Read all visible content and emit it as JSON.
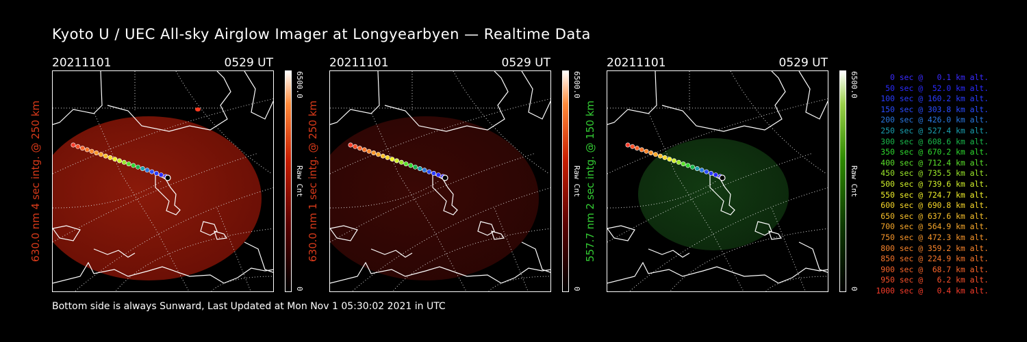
{
  "page_title": "Kyoto U / UEC All-sky Airglow Imager at Longyearbyen — Realtime Data",
  "panels": [
    {
      "date": "20211101",
      "time": "0529 UT",
      "label": "630.0 nm 4 sec intg. @ 250 km",
      "label_color": "#d93a1a",
      "colorbar_max": "6500.0",
      "colorbar_unit": "Raw Cnt",
      "colorbar_min": "0",
      "theme": "red-bright"
    },
    {
      "date": "20211101",
      "time": "0529 UT",
      "label": "630.0 nm 1 sec intg. @ 250 km",
      "label_color": "#d93a1a",
      "colorbar_max": "6500.0",
      "colorbar_unit": "Raw Cnt",
      "colorbar_min": "0",
      "theme": "red-dark"
    },
    {
      "date": "20211101",
      "time": "0529 UT",
      "label": "557.7 nm 2 sec intg. @ 150 km",
      "label_color": "#33cc33",
      "colorbar_max": "6500.0",
      "colorbar_unit": "Raw Cnt",
      "colorbar_min": "0",
      "theme": "green"
    }
  ],
  "legend": [
    {
      "text": "   0 sec @   0.1 km alt.",
      "color": "#3a2aff"
    },
    {
      "text": "  50 sec @  52.0 km alt.",
      "color": "#2a2aff"
    },
    {
      "text": " 100 sec @ 160.2 km alt.",
      "color": "#2a3cff"
    },
    {
      "text": " 150 sec @ 303.8 km alt.",
      "color": "#2a4cff"
    },
    {
      "text": " 200 sec @ 426.0 km alt.",
      "color": "#2a78e0"
    },
    {
      "text": " 250 sec @ 527.4 km alt.",
      "color": "#1aa0b0"
    },
    {
      "text": " 300 sec @ 608.6 km alt.",
      "color": "#1ab84a"
    },
    {
      "text": " 350 sec @ 670.2 km alt.",
      "color": "#2ed82e"
    },
    {
      "text": " 400 sec @ 712.4 km alt.",
      "color": "#5ae02a"
    },
    {
      "text": " 450 sec @ 735.5 km alt.",
      "color": "#9ae82a"
    },
    {
      "text": " 500 sec @ 739.6 km alt.",
      "color": "#d0f02a"
    },
    {
      "text": " 550 sec @ 724.7 km alt.",
      "color": "#f0f02a"
    },
    {
      "text": " 600 sec @ 690.8 km alt.",
      "color": "#f8d82a"
    },
    {
      "text": " 650 sec @ 637.6 km alt.",
      "color": "#f8c02a"
    },
    {
      "text": " 700 sec @ 564.9 km alt.",
      "color": "#f8a82a"
    },
    {
      "text": " 750 sec @ 472.3 km alt.",
      "color": "#f8962a"
    },
    {
      "text": " 800 sec @ 359.2 km alt.",
      "color": "#f8842a"
    },
    {
      "text": " 850 sec @ 224.9 km alt.",
      "color": "#f8762a"
    },
    {
      "text": " 900 sec @  68.7 km alt.",
      "color": "#f8642a"
    },
    {
      "text": " 950 sec @   6.2 km alt.",
      "color": "#f8502a"
    },
    {
      "text": "1000 sec @   0.4 km alt.",
      "color": "#f83c2a"
    }
  ],
  "footer": "Bottom side is always Sunward, Last Updated at Mon Nov  1 05:30:02 2021 in UTC"
}
